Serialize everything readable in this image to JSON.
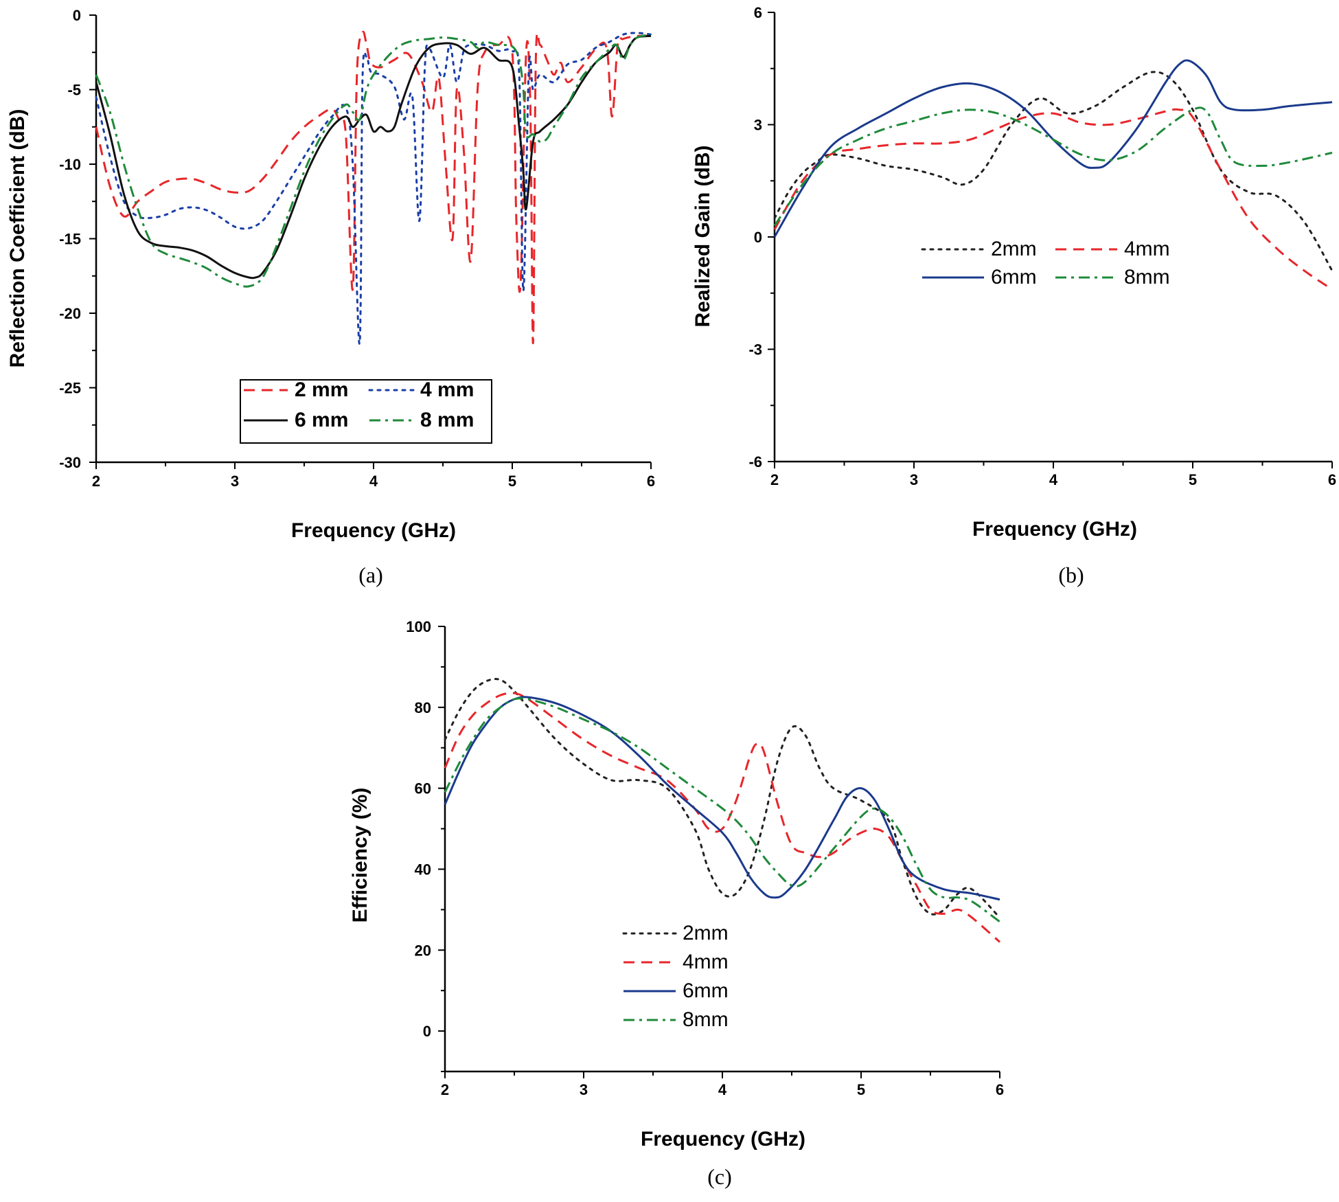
{
  "colors": {
    "2mm_a": "#e8262a",
    "4mm_a": "#1a3ea8",
    "6mm_a": "#111111",
    "8mm_a": "#1e8a3a",
    "2mm": "#222222",
    "4mm": "#e8262a",
    "6mm": "#1a3a8c",
    "8mm": "#1e8a3a"
  },
  "chart_data": [
    {
      "panel": "(a)",
      "type": "line",
      "xlabel": "Frequency (GHz)",
      "ylabel": "Reflection Coefficient (dB)",
      "xlim": [
        2,
        6
      ],
      "ylim": [
        -30,
        0
      ],
      "xticks": [
        "2",
        "3",
        "4",
        "5",
        "6"
      ],
      "yticks": [
        "-30",
        "-25",
        "-20",
        "-15",
        "-10",
        "-5",
        "0"
      ],
      "legend": {
        "placement": "lower-center",
        "entries": [
          "2 mm",
          "4 mm",
          "6 mm",
          "8 mm"
        ]
      },
      "series": [
        {
          "name": "2 mm",
          "style": "dashed",
          "color_key": "2mm_a",
          "x": [
            2.0,
            2.1,
            2.2,
            2.3,
            2.4,
            2.5,
            2.6,
            2.7,
            2.8,
            2.9,
            3.0,
            3.1,
            3.2,
            3.3,
            3.4,
            3.5,
            3.6,
            3.7,
            3.75,
            3.8,
            3.85,
            3.88,
            3.92,
            3.95,
            3.98,
            4.05,
            4.15,
            4.25,
            4.35,
            4.42,
            4.47,
            4.52,
            4.57,
            4.6,
            4.65,
            4.7,
            4.75,
            4.8,
            4.9,
            5.0,
            5.03,
            5.06,
            5.1,
            5.13,
            5.15,
            5.17,
            5.2,
            5.25,
            5.3,
            5.35,
            5.4,
            5.5,
            5.6,
            5.68,
            5.72,
            5.76,
            5.8,
            5.9,
            6.0
          ],
          "y": [
            -7.5,
            -11.5,
            -13.5,
            -12.5,
            -11.8,
            -11.2,
            -11.0,
            -11.0,
            -11.3,
            -11.7,
            -11.9,
            -11.8,
            -11.0,
            -9.8,
            -8.5,
            -7.5,
            -6.8,
            -6.3,
            -7.0,
            -8.0,
            -18.4,
            -4.0,
            -1.2,
            -2.0,
            -3.2,
            -3.5,
            -3.0,
            -2.6,
            -4.5,
            -6.5,
            -4.2,
            -10.0,
            -15.0,
            -5.0,
            -9.0,
            -16.5,
            -5.0,
            -2.5,
            -2.0,
            -2.5,
            -14.0,
            -18.0,
            -2.5,
            -6.0,
            -22.0,
            -3.0,
            -2.0,
            -3.0,
            -4.0,
            -3.2,
            -4.5,
            -3.5,
            -2.3,
            -2.2,
            -6.8,
            -2.0,
            -1.6,
            -1.4,
            -1.4
          ]
        },
        {
          "name": "4 mm",
          "style": "dotted",
          "color_key": "4mm_a",
          "x": [
            2.0,
            2.1,
            2.2,
            2.3,
            2.4,
            2.5,
            2.6,
            2.7,
            2.8,
            2.9,
            3.0,
            3.1,
            3.2,
            3.3,
            3.4,
            3.5,
            3.6,
            3.7,
            3.8,
            3.85,
            3.9,
            3.92,
            3.95,
            3.98,
            4.05,
            4.15,
            4.22,
            4.28,
            4.33,
            4.37,
            4.4,
            4.5,
            4.55,
            4.6,
            4.65,
            4.7,
            4.8,
            4.9,
            5.0,
            5.05,
            5.08,
            5.12,
            5.15,
            5.2,
            5.3,
            5.4,
            5.5,
            5.6,
            5.7,
            5.8,
            5.9,
            6.0
          ],
          "y": [
            -5.5,
            -9.5,
            -12.5,
            -13.5,
            -13.6,
            -13.4,
            -13.0,
            -12.9,
            -13.1,
            -13.6,
            -14.2,
            -14.3,
            -13.8,
            -12.5,
            -11.0,
            -9.5,
            -8.0,
            -6.8,
            -6.2,
            -10.0,
            -22.0,
            -4.5,
            -2.8,
            -3.8,
            -4.0,
            -4.8,
            -7.0,
            -5.5,
            -13.8,
            -3.5,
            -2.2,
            -4.2,
            -2.0,
            -4.5,
            -2.4,
            -2.0,
            -2.0,
            -2.4,
            -2.4,
            -4.0,
            -18.5,
            -3.5,
            -5.0,
            -4.0,
            -4.5,
            -3.3,
            -3.0,
            -2.2,
            -1.8,
            -1.3,
            -1.2,
            -1.3
          ]
        },
        {
          "name": "6 mm",
          "style": "solid",
          "color_key": "6mm_a",
          "x": [
            2.0,
            2.1,
            2.2,
            2.3,
            2.4,
            2.5,
            2.6,
            2.7,
            2.8,
            2.9,
            3.0,
            3.1,
            3.15,
            3.2,
            3.3,
            3.4,
            3.5,
            3.6,
            3.7,
            3.8,
            3.85,
            3.9,
            3.95,
            4.0,
            4.05,
            4.1,
            4.15,
            4.2,
            4.3,
            4.4,
            4.5,
            4.6,
            4.7,
            4.8,
            4.9,
            5.0,
            5.05,
            5.08,
            5.1,
            5.15,
            5.2,
            5.3,
            5.4,
            5.5,
            5.6,
            5.7,
            5.75,
            5.8,
            5.85,
            5.9,
            6.0
          ],
          "y": [
            -4.5,
            -8.0,
            -12.0,
            -14.5,
            -15.3,
            -15.5,
            -15.6,
            -15.8,
            -16.2,
            -16.8,
            -17.3,
            -17.6,
            -17.6,
            -17.3,
            -15.8,
            -13.5,
            -11.0,
            -9.0,
            -7.5,
            -6.8,
            -7.5,
            -7.0,
            -6.7,
            -7.8,
            -7.5,
            -7.8,
            -7.5,
            -6.0,
            -3.5,
            -2.2,
            -1.9,
            -2.0,
            -2.6,
            -2.2,
            -3.0,
            -3.5,
            -7.5,
            -10.5,
            -13.0,
            -8.5,
            -7.8,
            -7.0,
            -6.0,
            -4.5,
            -3.2,
            -2.5,
            -2.0,
            -2.8,
            -2.0,
            -1.5,
            -1.4
          ]
        },
        {
          "name": "8 mm",
          "style": "dashdot",
          "color_key": "8mm_a",
          "x": [
            2.0,
            2.1,
            2.2,
            2.3,
            2.4,
            2.5,
            2.6,
            2.7,
            2.8,
            2.9,
            3.0,
            3.1,
            3.2,
            3.3,
            3.4,
            3.5,
            3.6,
            3.7,
            3.8,
            3.85,
            3.9,
            3.95,
            4.0,
            4.1,
            4.2,
            4.3,
            4.4,
            4.5,
            4.6,
            4.7,
            4.75,
            4.8,
            4.9,
            5.0,
            5.05,
            5.08,
            5.1,
            5.15,
            5.2,
            5.25,
            5.3,
            5.4,
            5.5,
            5.6,
            5.7,
            5.75,
            5.8,
            5.85,
            5.9,
            6.0
          ],
          "y": [
            -4.0,
            -6.5,
            -10.0,
            -13.0,
            -15.3,
            -16.0,
            -16.3,
            -16.6,
            -17.0,
            -17.6,
            -18.0,
            -18.2,
            -17.6,
            -15.5,
            -13.0,
            -10.5,
            -8.5,
            -7.0,
            -6.0,
            -6.5,
            -7.0,
            -5.0,
            -4.0,
            -2.8,
            -2.0,
            -1.7,
            -1.6,
            -1.5,
            -1.6,
            -1.8,
            -2.2,
            -1.8,
            -2.0,
            -2.1,
            -3.0,
            -5.0,
            -8.0,
            -8.0,
            -8.5,
            -8.3,
            -7.5,
            -6.0,
            -4.2,
            -3.2,
            -2.3,
            -2.0,
            -3.0,
            -2.0,
            -1.5,
            -1.3
          ]
        }
      ]
    },
    {
      "panel": "(b)",
      "type": "line",
      "xlabel": "Frequency (GHz)",
      "ylabel": "Realized Gain (dB)",
      "xlim": [
        2,
        6
      ],
      "ylim": [
        -6,
        6
      ],
      "xticks": [
        "2",
        "3",
        "4",
        "5",
        "6"
      ],
      "yticks": [
        "-6",
        "-3",
        "0",
        "3",
        "6"
      ],
      "legend": {
        "placement": "center",
        "entries": [
          "2mm",
          "4mm",
          "6mm",
          "8mm"
        ]
      },
      "series": [
        {
          "name": "2mm",
          "style": "dotted",
          "color_key": "2mm",
          "x": [
            2.0,
            2.1,
            2.2,
            2.3,
            2.4,
            2.6,
            2.8,
            3.0,
            3.2,
            3.35,
            3.5,
            3.7,
            3.9,
            4.1,
            4.3,
            4.5,
            4.7,
            4.85,
            5.0,
            5.2,
            5.4,
            5.6,
            5.8,
            6.0
          ],
          "y": [
            0.5,
            1.2,
            1.7,
            2.0,
            2.2,
            2.1,
            1.9,
            1.8,
            1.6,
            1.4,
            1.8,
            3.0,
            3.7,
            3.3,
            3.5,
            4.0,
            4.4,
            4.2,
            3.4,
            1.8,
            1.2,
            1.1,
            0.4,
            -0.9
          ]
        },
        {
          "name": "4mm",
          "style": "dashed",
          "color_key": "4mm",
          "x": [
            2.0,
            2.2,
            2.4,
            2.6,
            2.8,
            3.0,
            3.2,
            3.4,
            3.6,
            3.8,
            4.0,
            4.2,
            4.4,
            4.6,
            4.8,
            4.9,
            5.0,
            5.2,
            5.4,
            5.6,
            5.8,
            6.0
          ],
          "y": [
            0.2,
            1.5,
            2.2,
            2.35,
            2.45,
            2.5,
            2.5,
            2.6,
            2.9,
            3.2,
            3.3,
            3.05,
            3.0,
            3.15,
            3.35,
            3.4,
            3.2,
            1.8,
            0.5,
            -0.3,
            -0.9,
            -1.4
          ]
        },
        {
          "name": "6mm",
          "style": "solid",
          "color_key": "6mm",
          "x": [
            2.0,
            2.2,
            2.4,
            2.6,
            2.8,
            3.0,
            3.2,
            3.4,
            3.6,
            3.8,
            4.0,
            4.2,
            4.3,
            4.4,
            4.6,
            4.8,
            4.9,
            4.98,
            5.1,
            5.2,
            5.3,
            5.5,
            5.7,
            6.0
          ],
          "y": [
            0.0,
            1.3,
            2.4,
            2.9,
            3.3,
            3.7,
            4.0,
            4.1,
            3.9,
            3.4,
            2.6,
            1.95,
            1.85,
            2.0,
            2.9,
            4.1,
            4.6,
            4.7,
            4.3,
            3.6,
            3.4,
            3.4,
            3.5,
            3.6
          ]
        },
        {
          "name": "8mm",
          "style": "dashdot",
          "color_key": "8mm",
          "x": [
            2.0,
            2.2,
            2.4,
            2.6,
            2.8,
            3.0,
            3.2,
            3.4,
            3.6,
            3.8,
            4.0,
            4.2,
            4.4,
            4.6,
            4.8,
            5.0,
            5.1,
            5.2,
            5.3,
            5.5,
            5.7,
            6.0
          ],
          "y": [
            0.3,
            1.4,
            2.2,
            2.6,
            2.9,
            3.1,
            3.3,
            3.4,
            3.3,
            3.0,
            2.6,
            2.2,
            2.05,
            2.3,
            2.9,
            3.4,
            3.35,
            2.6,
            2.0,
            1.9,
            2.0,
            2.25
          ]
        }
      ]
    },
    {
      "panel": "(c)",
      "type": "line",
      "xlabel": "Frequency (GHz)",
      "ylabel": "Efficiency (%)",
      "xlim": [
        2,
        6
      ],
      "ylim": [
        -10,
        100
      ],
      "xticks": [
        "2",
        "3",
        "4",
        "5",
        "6"
      ],
      "yticks": [
        "0",
        "20",
        "40",
        "60",
        "80",
        "100"
      ],
      "legend": {
        "placement": "lower-center",
        "entries": [
          "2mm",
          "4mm",
          "6mm",
          "8mm"
        ]
      },
      "series": [
        {
          "name": "2mm",
          "style": "dotted",
          "color_key": "2mm",
          "x": [
            2.0,
            2.1,
            2.2,
            2.3,
            2.4,
            2.5,
            2.6,
            2.8,
            3.0,
            3.2,
            3.4,
            3.6,
            3.8,
            3.9,
            4.0,
            4.1,
            4.2,
            4.3,
            4.4,
            4.5,
            4.6,
            4.7,
            4.8,
            5.0,
            5.2,
            5.3,
            5.4,
            5.5,
            5.6,
            5.7,
            5.8,
            6.0
          ],
          "y": [
            72,
            79,
            84,
            86.5,
            86.8,
            84,
            80,
            72,
            66,
            62,
            62,
            60,
            50,
            40,
            34,
            34,
            40,
            52,
            67,
            75,
            73,
            65,
            60,
            57,
            52,
            42,
            33,
            29,
            30,
            34,
            35,
            28
          ]
        },
        {
          "name": "4mm",
          "style": "dashed",
          "color_key": "4mm",
          "x": [
            2.0,
            2.1,
            2.2,
            2.3,
            2.4,
            2.5,
            2.6,
            2.8,
            3.0,
            3.2,
            3.4,
            3.6,
            3.8,
            3.9,
            4.0,
            4.1,
            4.2,
            4.25,
            4.3,
            4.4,
            4.5,
            4.6,
            4.7,
            4.8,
            4.9,
            5.0,
            5.1,
            5.2,
            5.3,
            5.4,
            5.5,
            5.6,
            5.7,
            5.8,
            6.0
          ],
          "y": [
            65,
            73,
            78,
            81,
            83,
            83.5,
            82,
            77,
            72,
            68,
            65,
            62,
            55,
            50,
            50,
            57,
            68,
            71,
            69,
            56,
            46,
            44,
            43,
            44,
            47,
            49,
            50,
            48,
            42,
            36,
            30,
            29,
            30,
            28,
            22
          ]
        },
        {
          "name": "6mm",
          "style": "solid",
          "color_key": "6mm",
          "x": [
            2.0,
            2.1,
            2.2,
            2.3,
            2.4,
            2.5,
            2.6,
            2.8,
            3.0,
            3.2,
            3.4,
            3.6,
            3.8,
            4.0,
            4.1,
            4.2,
            4.3,
            4.37,
            4.45,
            4.6,
            4.8,
            4.9,
            5.0,
            5.1,
            5.2,
            5.3,
            5.4,
            5.6,
            5.8,
            6.0
          ],
          "y": [
            56,
            64,
            71,
            76,
            80,
            82,
            82.5,
            81,
            78,
            74,
            68,
            61,
            55,
            49,
            44,
            38,
            34,
            33,
            34,
            40,
            52,
            58,
            60,
            57,
            50,
            42,
            38,
            35,
            34,
            32.5
          ]
        },
        {
          "name": "8mm",
          "style": "dashdot",
          "color_key": "8mm",
          "x": [
            2.0,
            2.1,
            2.2,
            2.3,
            2.4,
            2.5,
            2.6,
            2.8,
            3.0,
            3.2,
            3.4,
            3.6,
            3.8,
            4.0,
            4.1,
            4.2,
            4.3,
            4.4,
            4.5,
            4.6,
            4.8,
            5.0,
            5.1,
            5.2,
            5.3,
            5.4,
            5.5,
            5.6,
            5.7,
            5.8,
            6.0
          ],
          "y": [
            59,
            66,
            72,
            77,
            80,
            82,
            82,
            80,
            77,
            74,
            70,
            65,
            60,
            55,
            52,
            48,
            43,
            39,
            36,
            37,
            45,
            53,
            55,
            53,
            48,
            41,
            35,
            33,
            33,
            32,
            27
          ]
        }
      ]
    }
  ]
}
